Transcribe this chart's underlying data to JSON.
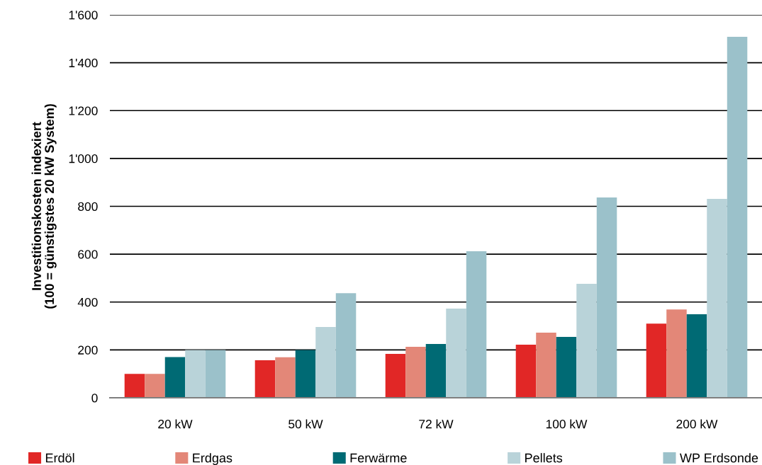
{
  "chart_data": {
    "type": "bar",
    "ylabel": "Investitionskosten indexiert\n(100 = günstigstes 20 kW System)",
    "categories": [
      "20 kW",
      "50 kW",
      "72 kW",
      "100 kW",
      "200 kW"
    ],
    "series": [
      {
        "name": "Erdöl",
        "color": "#e12726",
        "values": [
          100,
          157,
          183,
          222,
          310
        ]
      },
      {
        "name": "Erdgas",
        "color": "#e38778",
        "values": [
          100,
          169,
          213,
          272,
          369
        ]
      },
      {
        "name": "Ferwärme",
        "color": "#006a74",
        "values": [
          170,
          200,
          225,
          254,
          349
        ]
      },
      {
        "name": "Pellets",
        "color": "#b9d3d9",
        "values": [
          200,
          296,
          373,
          476,
          831
        ]
      },
      {
        "name": "WP Erdsonde",
        "color": "#9bc1ca",
        "values": [
          200,
          437,
          612,
          837,
          1508
        ]
      }
    ],
    "ylim": [
      0,
      1600
    ],
    "yticks": [
      0,
      200,
      400,
      600,
      800,
      {
        "value": 1000,
        "label": "1'000"
      },
      {
        "value": 1200,
        "label": "1'200"
      },
      {
        "value": 1400,
        "label": "1'400"
      },
      {
        "value": 1600,
        "label": "1'600"
      }
    ],
    "grid": "y",
    "legend": "bottom"
  }
}
